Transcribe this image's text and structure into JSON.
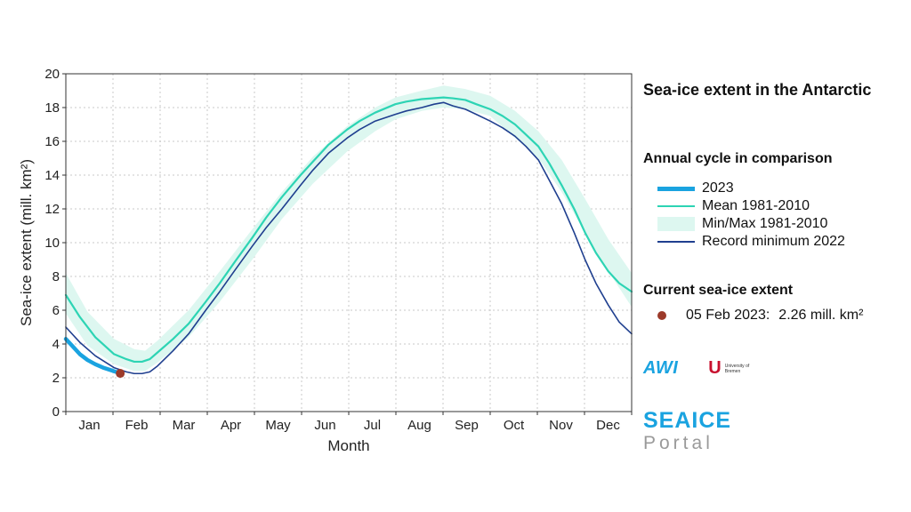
{
  "chart_data": {
    "type": "line",
    "title": "Sea-ice extent in the Antarctic",
    "xlabel": "Month",
    "ylabel": "Sea-ice extent (mill. km²)",
    "ylim": [
      0,
      20
    ],
    "yticks": [
      0,
      2,
      4,
      6,
      8,
      10,
      12,
      14,
      16,
      18,
      20
    ],
    "x_day_range": [
      1,
      365
    ],
    "grid": true,
    "categories": [
      "Jan",
      "Feb",
      "Mar",
      "Apr",
      "May",
      "Jun",
      "Jul",
      "Aug",
      "Sep",
      "Oct",
      "Nov",
      "Dec"
    ],
    "series": [
      {
        "name": "Min/Max 1981-2010",
        "kind": "band",
        "color": "#ddf7f0",
        "x": [
          1,
          15,
          32,
          45,
          52,
          60,
          80,
          100,
          121,
          140,
          160,
          182,
          200,
          213,
          230,
          244,
          258,
          274,
          290,
          305,
          320,
          335,
          350,
          365
        ],
        "lower": [
          5.8,
          3.9,
          2.8,
          2.4,
          2.4,
          2.9,
          4.4,
          6.5,
          9.0,
          11.4,
          13.5,
          15.4,
          16.6,
          17.3,
          17.8,
          18.0,
          17.9,
          17.5,
          16.2,
          15.0,
          13.0,
          10.6,
          8.3,
          6.2
        ],
        "upper": [
          8.2,
          5.9,
          4.3,
          3.7,
          3.6,
          4.2,
          6.0,
          8.3,
          10.8,
          13.0,
          15.1,
          16.9,
          18.0,
          18.6,
          19.0,
          19.3,
          19.1,
          18.7,
          17.8,
          16.6,
          14.9,
          12.6,
          10.2,
          8.2
        ]
      },
      {
        "name": "Mean 1981-2010",
        "kind": "line",
        "color": "#2dd4b4",
        "x": [
          1,
          10,
          20,
          32,
          40,
          45,
          50,
          55,
          60,
          70,
          80,
          91,
          100,
          110,
          121,
          130,
          140,
          152,
          160,
          170,
          182,
          190,
          200,
          213,
          220,
          230,
          244,
          250,
          258,
          265,
          274,
          282,
          290,
          297,
          305,
          312,
          320,
          328,
          335,
          342,
          350,
          357,
          365
        ],
        "values": [
          6.9,
          5.6,
          4.4,
          3.4,
          3.1,
          2.95,
          2.95,
          3.1,
          3.5,
          4.3,
          5.2,
          6.5,
          7.6,
          8.9,
          10.3,
          11.5,
          12.7,
          14.0,
          14.8,
          15.8,
          16.7,
          17.2,
          17.7,
          18.2,
          18.35,
          18.5,
          18.6,
          18.55,
          18.45,
          18.2,
          17.9,
          17.5,
          17.0,
          16.4,
          15.7,
          14.7,
          13.4,
          12.0,
          10.6,
          9.4,
          8.3,
          7.6,
          7.1
        ]
      },
      {
        "name": "Record minimum 2022",
        "kind": "line",
        "color": "#1f3f8f",
        "x": [
          1,
          10,
          20,
          32,
          40,
          45,
          50,
          55,
          60,
          70,
          80,
          91,
          100,
          110,
          121,
          130,
          140,
          152,
          160,
          170,
          182,
          190,
          200,
          213,
          220,
          230,
          238,
          244,
          250,
          258,
          265,
          274,
          282,
          290,
          297,
          305,
          312,
          320,
          328,
          335,
          342,
          350,
          357,
          365
        ],
        "values": [
          5.0,
          4.1,
          3.3,
          2.6,
          2.35,
          2.25,
          2.25,
          2.35,
          2.7,
          3.6,
          4.6,
          6.0,
          7.1,
          8.4,
          9.8,
          10.9,
          12.0,
          13.4,
          14.3,
          15.3,
          16.2,
          16.7,
          17.2,
          17.6,
          17.8,
          18.0,
          18.2,
          18.3,
          18.1,
          17.9,
          17.6,
          17.2,
          16.8,
          16.3,
          15.7,
          14.9,
          13.7,
          12.3,
          10.6,
          9.0,
          7.6,
          6.3,
          5.3,
          4.6
        ]
      },
      {
        "name": "2023",
        "kind": "line",
        "color": "#1aa3e0",
        "x": [
          1,
          5,
          10,
          15,
          20,
          25,
          30,
          36
        ],
        "values": [
          4.3,
          3.9,
          3.4,
          3.05,
          2.8,
          2.6,
          2.45,
          2.26
        ]
      }
    ],
    "current": {
      "heading": "Current sea-ice extent",
      "label": "05 Feb 2023:",
      "value_text": "2.26 mill. km²",
      "x": 36,
      "value": 2.26,
      "color": "#9c3a2a"
    }
  },
  "panel": {
    "title": "Sea-ice extent in the Antarctic",
    "comparison_heading": "Annual cycle in comparison",
    "legend": [
      "2023",
      "Mean 1981-2010",
      "Min/Max 1981-2010",
      "Record minimum 2022"
    ]
  },
  "logos": {
    "awi": "AWI",
    "uni_mark": "U",
    "uni_text": "University of Bremen",
    "brand_line1": "SEAICE",
    "brand_line2": "Portal"
  }
}
